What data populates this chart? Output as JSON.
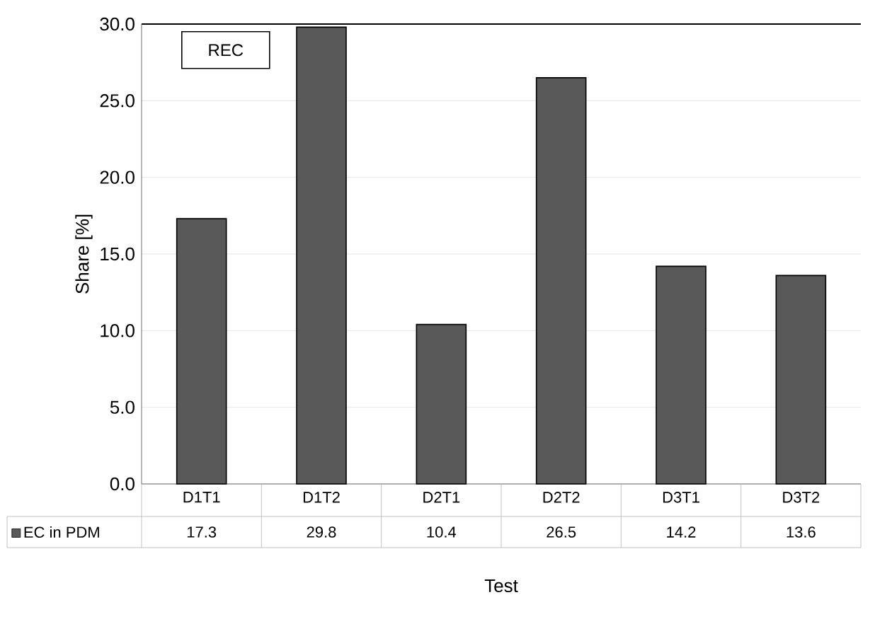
{
  "chart_data": {
    "type": "bar",
    "title": "REC",
    "xlabel": "Test",
    "ylabel": "Share [%]",
    "categories": [
      "D1T1",
      "D1T2",
      "D2T1",
      "D2T2",
      "D3T1",
      "D3T2"
    ],
    "series": [
      {
        "name": "EC in PDM",
        "color": "#595959",
        "values": [
          17.3,
          29.8,
          10.4,
          26.5,
          14.2,
          13.6
        ]
      }
    ],
    "ylim": [
      0,
      30
    ],
    "yticks": [
      {
        "value": 0,
        "label": "0.0"
      },
      {
        "value": 5,
        "label": "5.0"
      },
      {
        "value": 10,
        "label": "10.0"
      },
      {
        "value": 15,
        "label": "15.0"
      },
      {
        "value": 20,
        "label": "20.0"
      },
      {
        "value": 25,
        "label": "25.0"
      },
      {
        "value": 30,
        "label": "30.0"
      }
    ],
    "grid": "y",
    "data_labels": true,
    "legend": "bottom"
  }
}
